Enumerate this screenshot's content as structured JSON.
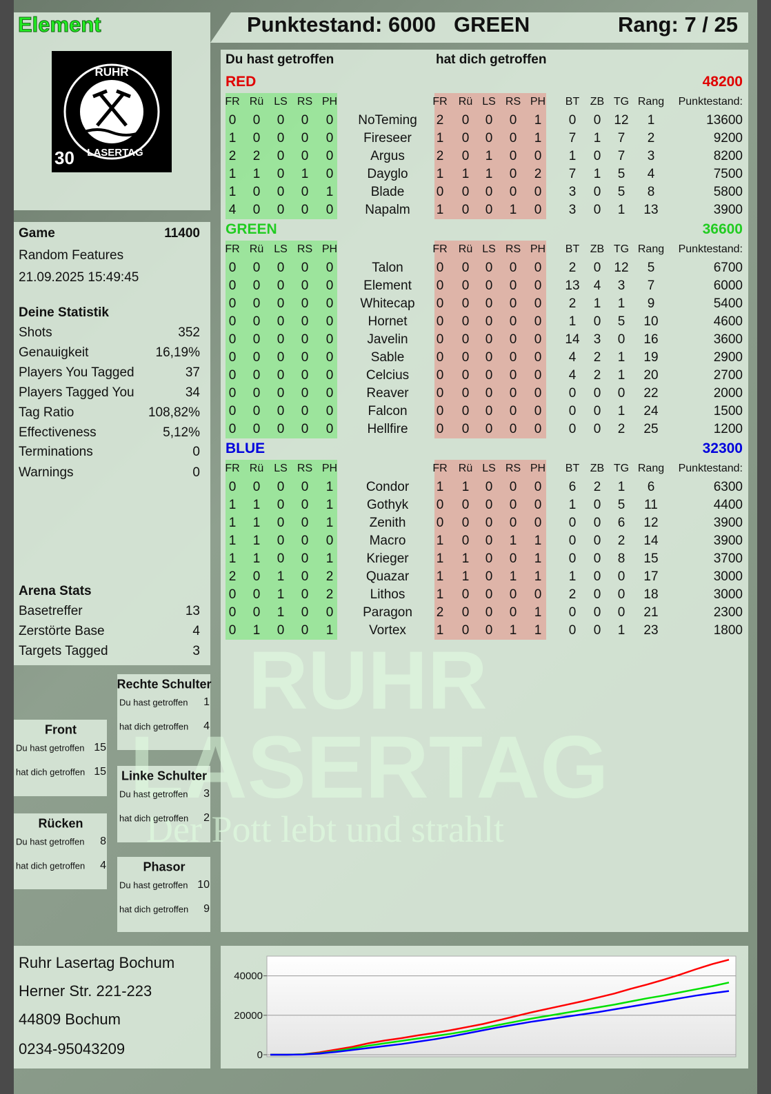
{
  "header": {
    "player": "Element",
    "score_label": "Punktestand:",
    "score": 6000,
    "team": "GREEN",
    "rank_label": "Rang:",
    "rank": "7 / 25"
  },
  "logo": {
    "top": "RUHR",
    "bottom": "LASERTAG",
    "badge": "30"
  },
  "watermark": {
    "line1": "RUHR",
    "line2": "LASERTAG",
    "tagline": "Der Pott lebt und strahlt"
  },
  "game": {
    "label": "Game",
    "number": 11400,
    "mode": "Random Features",
    "datetime": "21.09.2025 15:49:45"
  },
  "stats": {
    "title": "Deine Statistik",
    "rows": [
      [
        "Shots",
        352
      ],
      [
        "Genauigkeit",
        "16,19%"
      ],
      [
        "Players You Tagged",
        37
      ],
      [
        "Players Tagged You",
        34
      ],
      [
        "Tag Ratio",
        "108,82%"
      ],
      [
        "Effectiveness",
        "5,12%"
      ],
      [
        "Terminations",
        0
      ],
      [
        "Warnings",
        0
      ]
    ]
  },
  "arena": {
    "title": "Arena Stats",
    "rows": [
      [
        "Basetreffer",
        13
      ],
      [
        "Zerstörte Base",
        4
      ],
      [
        "Targets Tagged",
        3
      ]
    ]
  },
  "zones": {
    "hit_by_you": "Du hast getroffen",
    "hit_you": "hat dich getroffen",
    "items": [
      {
        "name": "Rechte Schulter",
        "by_you": 1,
        "you": 4
      },
      {
        "name": "Front",
        "by_you": 15,
        "you": 15
      },
      {
        "name": "Linke Schulter",
        "by_you": 3,
        "you": 2
      },
      {
        "name": "Rücken",
        "by_you": 8,
        "you": 4
      },
      {
        "name": "Phasor",
        "by_you": 10,
        "you": 9
      }
    ]
  },
  "address": [
    "Ruhr Lasertag Bochum",
    "Herner Str. 221-223",
    "44809 Bochum",
    "0234-95043209"
  ],
  "table": {
    "given_title": "Du hast getroffen",
    "taken_title": "hat dich getroffen",
    "hit_columns": [
      "FR",
      "Rü",
      "LS",
      "RS",
      "PH"
    ],
    "stat_columns": [
      "BT",
      "ZB",
      "TG",
      "Rang",
      "Punktestand:"
    ],
    "teams": [
      {
        "name": "RED",
        "color": "#e00000",
        "total": 48200,
        "players": [
          {
            "name": "NoTeming",
            "given": [
              0,
              0,
              0,
              0,
              0
            ],
            "taken": [
              2,
              0,
              0,
              0,
              1
            ],
            "stats": [
              0,
              0,
              12,
              1,
              13600
            ]
          },
          {
            "name": "Fireseer",
            "given": [
              1,
              0,
              0,
              0,
              0
            ],
            "taken": [
              1,
              0,
              0,
              0,
              1
            ],
            "stats": [
              7,
              1,
              7,
              2,
              9200
            ]
          },
          {
            "name": "Argus",
            "given": [
              2,
              2,
              0,
              0,
              0
            ],
            "taken": [
              2,
              0,
              1,
              0,
              0
            ],
            "stats": [
              1,
              0,
              7,
              3,
              8200
            ]
          },
          {
            "name": "Dayglo",
            "given": [
              1,
              1,
              0,
              1,
              0
            ],
            "taken": [
              1,
              1,
              1,
              0,
              2
            ],
            "stats": [
              7,
              1,
              5,
              4,
              7500
            ]
          },
          {
            "name": "Blade",
            "given": [
              1,
              0,
              0,
              0,
              1
            ],
            "taken": [
              0,
              0,
              0,
              0,
              0
            ],
            "stats": [
              3,
              0,
              5,
              8,
              5800
            ]
          },
          {
            "name": "Napalm",
            "given": [
              4,
              0,
              0,
              0,
              0
            ],
            "taken": [
              1,
              0,
              0,
              1,
              0
            ],
            "stats": [
              3,
              0,
              1,
              13,
              3900
            ]
          }
        ]
      },
      {
        "name": "GREEN",
        "color": "#22cc22",
        "total": 36600,
        "players": [
          {
            "name": "Talon",
            "given": [
              0,
              0,
              0,
              0,
              0
            ],
            "taken": [
              0,
              0,
              0,
              0,
              0
            ],
            "stats": [
              2,
              0,
              12,
              5,
              6700
            ]
          },
          {
            "name": "Element",
            "given": [
              0,
              0,
              0,
              0,
              0
            ],
            "taken": [
              0,
              0,
              0,
              0,
              0
            ],
            "stats": [
              13,
              4,
              3,
              7,
              6000
            ]
          },
          {
            "name": "Whitecap",
            "given": [
              0,
              0,
              0,
              0,
              0
            ],
            "taken": [
              0,
              0,
              0,
              0,
              0
            ],
            "stats": [
              2,
              1,
              1,
              9,
              5400
            ]
          },
          {
            "name": "Hornet",
            "given": [
              0,
              0,
              0,
              0,
              0
            ],
            "taken": [
              0,
              0,
              0,
              0,
              0
            ],
            "stats": [
              1,
              0,
              5,
              10,
              4600
            ]
          },
          {
            "name": "Javelin",
            "given": [
              0,
              0,
              0,
              0,
              0
            ],
            "taken": [
              0,
              0,
              0,
              0,
              0
            ],
            "stats": [
              14,
              3,
              0,
              16,
              3600
            ]
          },
          {
            "name": "Sable",
            "given": [
              0,
              0,
              0,
              0,
              0
            ],
            "taken": [
              0,
              0,
              0,
              0,
              0
            ],
            "stats": [
              4,
              2,
              1,
              19,
              2900
            ]
          },
          {
            "name": "Celcius",
            "given": [
              0,
              0,
              0,
              0,
              0
            ],
            "taken": [
              0,
              0,
              0,
              0,
              0
            ],
            "stats": [
              4,
              2,
              1,
              20,
              2700
            ]
          },
          {
            "name": "Reaver",
            "given": [
              0,
              0,
              0,
              0,
              0
            ],
            "taken": [
              0,
              0,
              0,
              0,
              0
            ],
            "stats": [
              0,
              0,
              0,
              22,
              2000
            ]
          },
          {
            "name": "Falcon",
            "given": [
              0,
              0,
              0,
              0,
              0
            ],
            "taken": [
              0,
              0,
              0,
              0,
              0
            ],
            "stats": [
              0,
              0,
              1,
              24,
              1500
            ]
          },
          {
            "name": "Hellfire",
            "given": [
              0,
              0,
              0,
              0,
              0
            ],
            "taken": [
              0,
              0,
              0,
              0,
              0
            ],
            "stats": [
              0,
              0,
              2,
              25,
              1200
            ]
          }
        ]
      },
      {
        "name": "BLUE",
        "color": "#0000dd",
        "total": 32300,
        "players": [
          {
            "name": "Condor",
            "given": [
              0,
              0,
              0,
              0,
              1
            ],
            "taken": [
              1,
              1,
              0,
              0,
              0
            ],
            "stats": [
              6,
              2,
              1,
              6,
              6300
            ]
          },
          {
            "name": "Gothyk",
            "given": [
              1,
              1,
              0,
              0,
              1
            ],
            "taken": [
              0,
              0,
              0,
              0,
              0
            ],
            "stats": [
              1,
              0,
              5,
              11,
              4400
            ]
          },
          {
            "name": "Zenith",
            "given": [
              1,
              1,
              0,
              0,
              1
            ],
            "taken": [
              0,
              0,
              0,
              0,
              0
            ],
            "stats": [
              0,
              0,
              6,
              12,
              3900
            ]
          },
          {
            "name": "Macro",
            "given": [
              1,
              1,
              0,
              0,
              0
            ],
            "taken": [
              1,
              0,
              0,
              1,
              1
            ],
            "stats": [
              0,
              0,
              2,
              14,
              3900
            ]
          },
          {
            "name": "Krieger",
            "given": [
              1,
              1,
              0,
              0,
              1
            ],
            "taken": [
              1,
              1,
              0,
              0,
              1
            ],
            "stats": [
              0,
              0,
              8,
              15,
              3700
            ]
          },
          {
            "name": "Quazar",
            "given": [
              2,
              0,
              1,
              0,
              2
            ],
            "taken": [
              1,
              1,
              0,
              1,
              1
            ],
            "stats": [
              1,
              0,
              0,
              17,
              3000
            ]
          },
          {
            "name": "Lithos",
            "given": [
              0,
              0,
              1,
              0,
              2
            ],
            "taken": [
              1,
              0,
              0,
              0,
              0
            ],
            "stats": [
              2,
              0,
              0,
              18,
              3000
            ]
          },
          {
            "name": "Paragon",
            "given": [
              0,
              0,
              1,
              0,
              0
            ],
            "taken": [
              2,
              0,
              0,
              0,
              1
            ],
            "stats": [
              0,
              0,
              0,
              21,
              2300
            ]
          },
          {
            "name": "Vortex",
            "given": [
              0,
              1,
              0,
              0,
              1
            ],
            "taken": [
              1,
              0,
              0,
              1,
              1
            ],
            "stats": [
              0,
              0,
              1,
              23,
              1800
            ]
          }
        ]
      }
    ]
  },
  "chart_data": {
    "type": "line",
    "ylim": [
      0,
      50000
    ],
    "yticks": [
      0,
      20000,
      40000
    ],
    "grid": true,
    "series": [
      {
        "color": "#ff0000",
        "values": [
          0,
          0,
          200,
          1200,
          2600,
          4000,
          5800,
          7200,
          8400,
          9800,
          11000,
          12400,
          14000,
          15600,
          17600,
          19600,
          21600,
          23400,
          25200,
          27000,
          29000,
          31000,
          33400,
          35600,
          38000,
          40600,
          43400,
          46000,
          48200
        ]
      },
      {
        "color": "#00e000",
        "values": [
          0,
          0,
          200,
          800,
          1800,
          3200,
          4600,
          5800,
          7000,
          8200,
          9400,
          10600,
          12000,
          13600,
          15200,
          16800,
          18400,
          19800,
          21200,
          22600,
          24000,
          25400,
          27000,
          28600,
          30000,
          31600,
          33200,
          34800,
          36600
        ]
      },
      {
        "color": "#0000ff",
        "values": [
          0,
          0,
          100,
          600,
          1400,
          2400,
          3400,
          4400,
          5400,
          6600,
          7800,
          9200,
          10800,
          12400,
          14000,
          15400,
          16800,
          18000,
          19200,
          20400,
          21600,
          23000,
          24400,
          25800,
          27200,
          28600,
          30000,
          31200,
          32300
        ]
      }
    ]
  }
}
